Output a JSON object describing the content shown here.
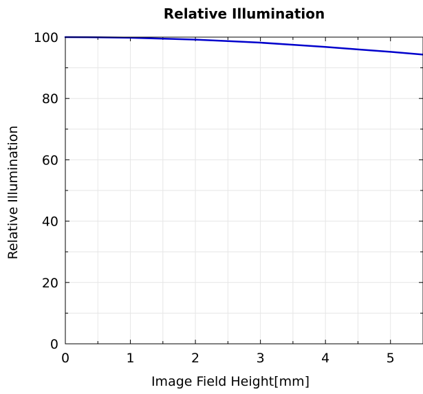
{
  "chart_data": {
    "type": "line",
    "title": "Relative Illumination",
    "xlabel": "Image Field Height[mm]",
    "ylabel": "Relative Illumination",
    "xlim": [
      0,
      5.5
    ],
    "ylim": [
      0,
      100
    ],
    "x_ticks": [
      0,
      1,
      2,
      3,
      4,
      5
    ],
    "x_tick_labels": [
      "0",
      "1",
      "2",
      "3",
      "4",
      "5"
    ],
    "x_minor_ticks": [
      0.5,
      1.5,
      2.5,
      3.5,
      4.5
    ],
    "y_ticks": [
      0,
      20,
      40,
      60,
      80,
      100
    ],
    "y_tick_labels": [
      "0",
      "20",
      "40",
      "60",
      "80",
      "100"
    ],
    "y_minor_ticks": [
      10,
      30,
      50,
      70,
      90
    ],
    "grid": true,
    "series": [
      {
        "color": "#0000cc",
        "x": [
          0,
          0.5,
          1.0,
          1.5,
          2.0,
          2.5,
          3.0,
          3.5,
          4.0,
          4.5,
          5.0,
          5.5
        ],
        "y": [
          100,
          99.95,
          99.8,
          99.5,
          99.2,
          98.7,
          98.2,
          97.5,
          96.8,
          96.0,
          95.2,
          94.3
        ]
      }
    ]
  }
}
